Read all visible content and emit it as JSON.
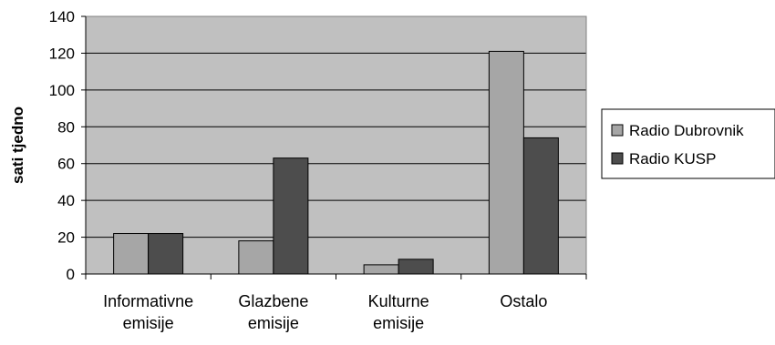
{
  "chart_data": {
    "type": "bar",
    "title": "",
    "xlabel": "",
    "ylabel": "sati tjedno",
    "ylim": [
      0,
      140
    ],
    "yticks": [
      0,
      20,
      40,
      60,
      80,
      100,
      120,
      140
    ],
    "categories": [
      [
        "Informativne",
        "emisije"
      ],
      [
        "Glazbene",
        "emisije"
      ],
      [
        "Kulturne",
        "emisije"
      ],
      [
        "Ostalo"
      ]
    ],
    "series": [
      {
        "name": "Radio Dubrovnik",
        "values": [
          22,
          18,
          5,
          121
        ],
        "color": "#a6a6a6"
      },
      {
        "name": "Radio KUSP",
        "values": [
          22,
          63,
          8,
          74
        ],
        "color": "#4d4d4d"
      }
    ],
    "grid": true,
    "plot_background": "#c0c0c0",
    "legend_position": "right"
  }
}
